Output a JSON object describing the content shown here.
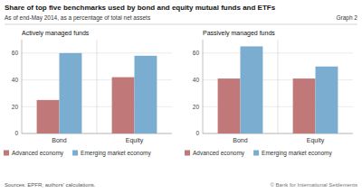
{
  "title": "Share of top five benchmarks used by bond and equity mutual funds and ETFs",
  "subtitle": "As of end-May 2014, as a percentage of total net assets",
  "annotations": [
    "Graph 2",
    "Sources: EPFR; authors' calculations.",
    "© Bank for International Settlements"
  ],
  "chart_data": [
    {
      "type": "bar",
      "title": "Actively managed funds",
      "categories": [
        "Bond",
        "Equity"
      ],
      "series": [
        {
          "name": "Advanced economy",
          "color": "#c07878",
          "values": [
            25,
            42
          ]
        },
        {
          "name": "Emerging market economy",
          "color": "#7aadcf",
          "values": [
            60,
            58
          ]
        }
      ],
      "ylim": [
        0,
        70
      ],
      "yticks": [
        0,
        20,
        40,
        60
      ],
      "grid": true,
      "legend": "bottom"
    },
    {
      "type": "bar",
      "title": "Passively managed funds",
      "categories": [
        "Bond",
        "Equity"
      ],
      "series": [
        {
          "name": "Advanced economy",
          "color": "#c07878",
          "values": [
            41,
            41
          ]
        },
        {
          "name": "Emerging market economy",
          "color": "#7aadcf",
          "values": [
            65,
            50
          ]
        }
      ],
      "ylim": [
        0,
        70
      ],
      "yticks": [
        0,
        20,
        40,
        60
      ],
      "grid": true,
      "legend": "bottom"
    }
  ]
}
